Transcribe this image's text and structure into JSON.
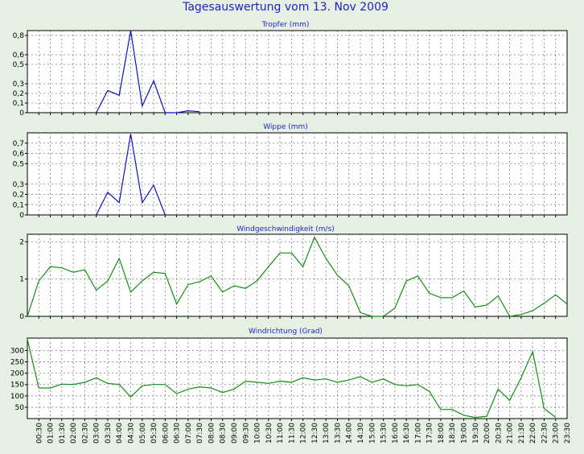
{
  "title": "Tagesauswertung vom 13. Nov 2009",
  "colors": {
    "background": "#e6f0e3",
    "title": "#1e1ecc",
    "rain": "#1010c8",
    "wind": "#109010"
  },
  "x_tick_labels": [
    "00:30",
    "01:00",
    "01:30",
    "02:00",
    "02:30",
    "03:00",
    "03:30",
    "04:00",
    "04:30",
    "05:00",
    "05:30",
    "06:00",
    "06:30",
    "07:00",
    "07:30",
    "08:00",
    "08:30",
    "09:00",
    "09:30",
    "10:00",
    "10:30",
    "11:00",
    "11:30",
    "12:00",
    "12:30",
    "13:00",
    "13:30",
    "14:00",
    "14:30",
    "15:00",
    "15:30",
    "16:00",
    "16:30",
    "17:00",
    "17:30",
    "18:00",
    "18:30",
    "19:00",
    "19:30",
    "20:00",
    "20:30",
    "21:00",
    "21:30",
    "22:00",
    "22:30",
    "23:00",
    "23:30"
  ],
  "chart_data": [
    {
      "type": "line",
      "title": "Tropfer (mm)",
      "ylim": [
        0,
        0.85
      ],
      "yticks": [
        {
          "v": 0,
          "label": "0"
        },
        {
          "v": 0.1,
          "label": "0,1"
        },
        {
          "v": 0.2,
          "label": "0,2"
        },
        {
          "v": 0.3,
          "label": "0,3"
        },
        {
          "v": 0.5,
          "label": "0,5"
        },
        {
          "v": 0.6,
          "label": "0,6"
        },
        {
          "v": 0.8,
          "label": "0,8"
        }
      ],
      "grid": true,
      "series": [
        {
          "color": "#1010c8",
          "values": [
            null,
            null,
            null,
            null,
            null,
            null,
            0,
            0.23,
            0.18,
            0.85,
            0.07,
            0.33,
            0,
            0,
            0.02,
            0.01
          ]
        }
      ]
    },
    {
      "type": "line",
      "title": "Wippe (mm)",
      "ylim": [
        0,
        0.8
      ],
      "yticks": [
        {
          "v": 0,
          "label": "0"
        },
        {
          "v": 0.1,
          "label": "0,1"
        },
        {
          "v": 0.2,
          "label": "0,2"
        },
        {
          "v": 0.3,
          "label": "0,3"
        },
        {
          "v": 0.5,
          "label": "0,5"
        },
        {
          "v": 0.6,
          "label": "0,6"
        },
        {
          "v": 0.7,
          "label": "0,7"
        }
      ],
      "grid": true,
      "series": [
        {
          "color": "#1010c8",
          "values": [
            null,
            null,
            null,
            null,
            null,
            null,
            0,
            0.22,
            0.12,
            0.79,
            0.12,
            0.29,
            0
          ]
        }
      ]
    },
    {
      "type": "line",
      "title": "Windgeschwindigkeit (m/s)",
      "ylim": [
        0,
        2.2
      ],
      "yticks": [
        {
          "v": 0,
          "label": "0"
        },
        {
          "v": 1,
          "label": "1"
        },
        {
          "v": 2,
          "label": "2"
        }
      ],
      "grid": true,
      "series": [
        {
          "color": "#109010",
          "values": [
            0,
            0.95,
            1.33,
            1.3,
            1.18,
            1.25,
            0.7,
            0.95,
            1.55,
            0.65,
            0.95,
            1.18,
            1.15,
            0.33,
            0.85,
            0.93,
            1.08,
            0.65,
            0.82,
            0.75,
            0.95,
            1.33,
            1.7,
            1.7,
            1.33,
            2.12,
            1.55,
            1.1,
            0.82,
            0.1,
            0,
            0,
            0.22,
            0.95,
            1.08,
            0.62,
            0.5,
            0.5,
            0.68,
            0.25,
            0.3,
            0.55,
            0,
            0.05,
            0.15,
            0.35,
            0.58,
            0.33
          ]
        }
      ]
    },
    {
      "type": "line",
      "title": "Windrichtung (Grad)",
      "ylim": [
        0,
        355
      ],
      "yticks": [
        {
          "v": 50,
          "label": "50"
        },
        {
          "v": 100,
          "label": "100"
        },
        {
          "v": 150,
          "label": "150"
        },
        {
          "v": 200,
          "label": "200"
        },
        {
          "v": 250,
          "label": "250"
        },
        {
          "v": 300,
          "label": "300"
        }
      ],
      "grid": true,
      "series": [
        {
          "color": "#109010",
          "values": [
            350,
            135,
            135,
            152,
            150,
            160,
            180,
            155,
            150,
            95,
            145,
            150,
            150,
            110,
            130,
            140,
            135,
            115,
            130,
            165,
            160,
            155,
            165,
            160,
            180,
            170,
            175,
            160,
            170,
            185,
            160,
            175,
            150,
            145,
            150,
            120,
            40,
            40,
            15,
            5,
            10,
            130,
            80,
            180,
            295,
            45,
            5
          ]
        }
      ]
    }
  ]
}
